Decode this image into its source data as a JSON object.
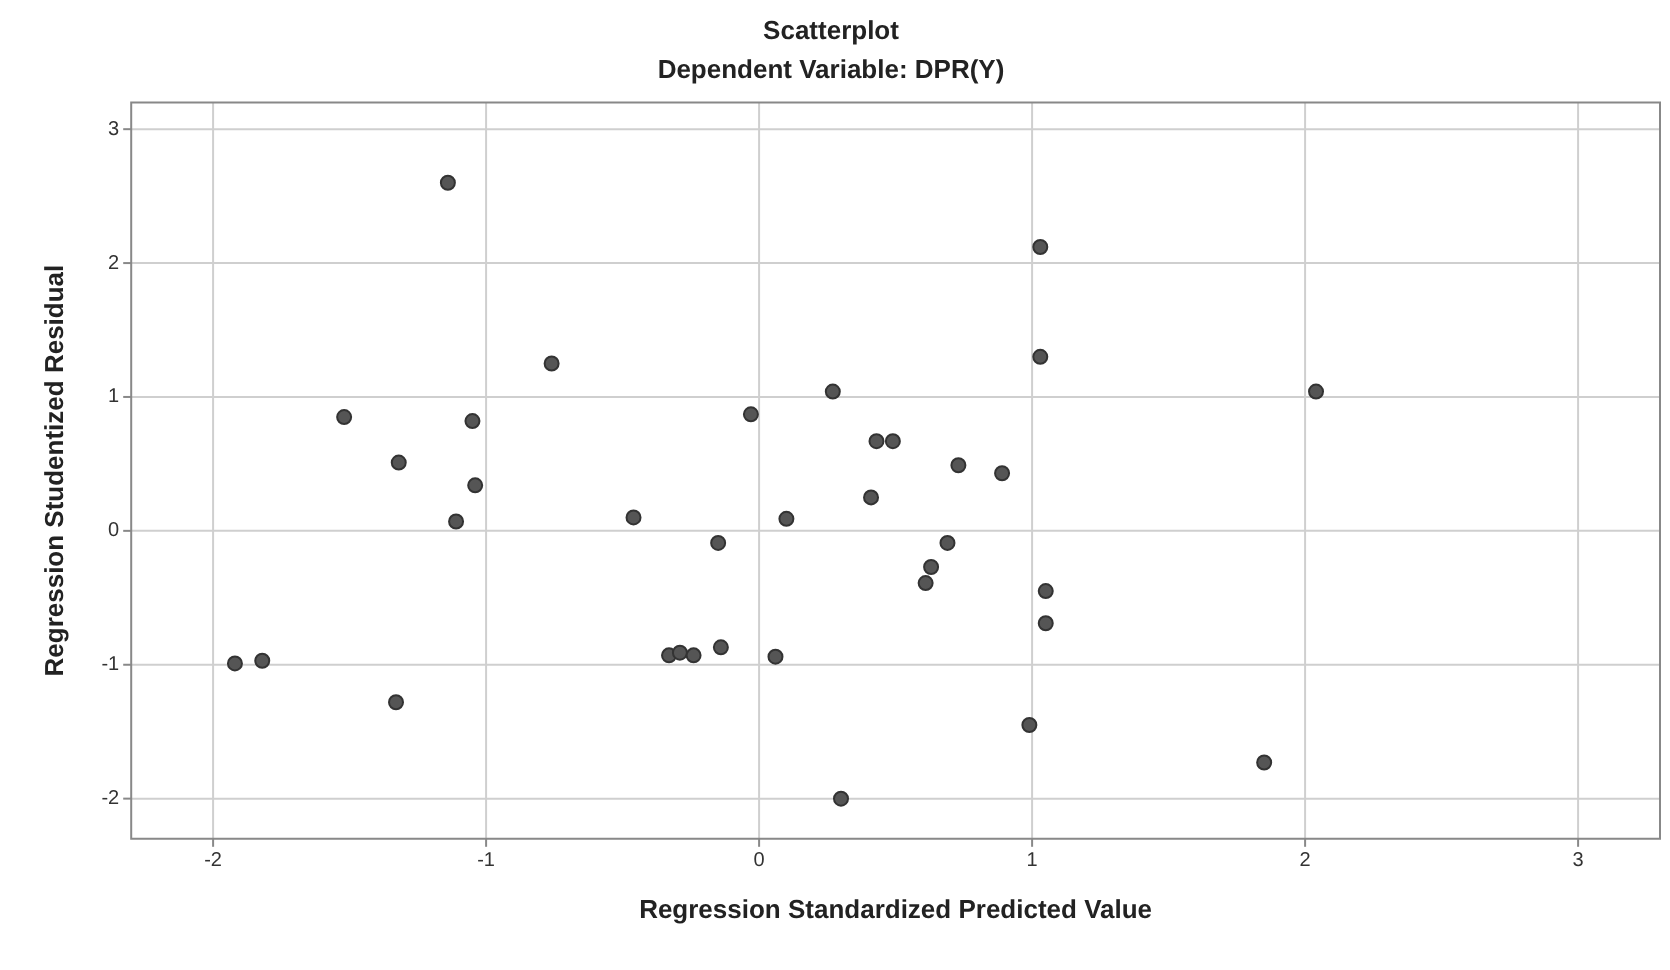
{
  "chart_data": {
    "type": "scatter",
    "title": "Scatterplot",
    "subtitle": "Dependent Variable: DPR(Y)",
    "xlabel": "Regression Standardized Predicted Value",
    "ylabel": "Regression Studentized Residual",
    "xlim": [
      -2.3,
      3.3
    ],
    "ylim": [
      -2.3,
      3.2
    ],
    "xticks": [
      -2,
      -1,
      0,
      1,
      2,
      3
    ],
    "yticks": [
      -2,
      -1,
      0,
      1,
      2,
      3
    ],
    "grid": true,
    "marker": "circle",
    "series": [
      {
        "color": "#555555",
        "x": [
          -1.14,
          1.03,
          1.03,
          -0.76,
          0.27,
          2.04,
          -1.52,
          -1.05,
          -0.03,
          0.43,
          0.49,
          -1.32,
          0.73,
          0.89,
          -1.04,
          0.41,
          -1.11,
          -0.46,
          0.1,
          -0.15,
          0.69,
          0.63,
          0.61,
          1.05,
          1.05,
          -0.14,
          -0.33,
          -0.29,
          -0.24,
          0.06,
          -1.92,
          -1.82,
          -1.33,
          0.99,
          1.85,
          0.3
        ],
        "values": [
          2.6,
          2.12,
          1.3,
          1.25,
          1.04,
          1.04,
          0.85,
          0.82,
          0.87,
          0.67,
          0.67,
          0.51,
          0.49,
          0.43,
          0.34,
          0.25,
          0.07,
          0.1,
          0.09,
          -0.09,
          -0.09,
          -0.27,
          -0.39,
          -0.45,
          -0.69,
          -0.87,
          -0.93,
          -0.91,
          -0.93,
          -0.94,
          -0.99,
          -0.97,
          -1.28,
          -1.45,
          -1.73,
          -2.0
        ]
      }
    ]
  }
}
